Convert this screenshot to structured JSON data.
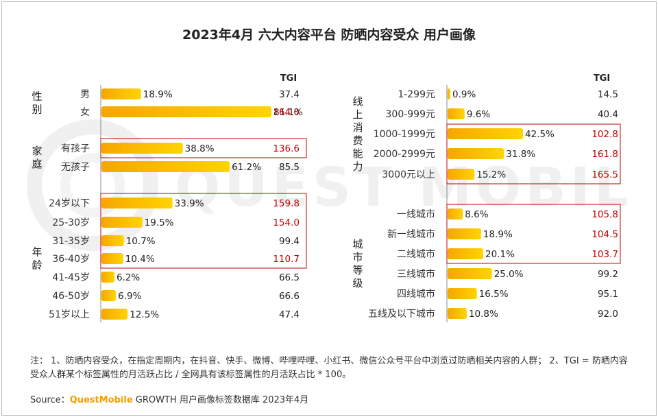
{
  "title": "2023年4月 六大内容平台 防晒内容受众 用户画像",
  "watermark_text": "QUEST MOBILE",
  "tgi_header": "TGI",
  "colors": {
    "bar_start": "#f7a600",
    "bar_end": "#ffd400",
    "highlight_text": "#c00000",
    "box": "#c00000",
    "axis": "#888888"
  },
  "chart_data": [
    {
      "type": "bar",
      "orientation": "horizontal",
      "panel": "left",
      "value_unit": "%",
      "groups": [
        {
          "label": "性别",
          "categories": [
            "男",
            "女"
          ],
          "values": [
            18.9,
            81.1
          ],
          "tgi": [
            37.4,
            164.0
          ],
          "tgi_highlight": [
            false,
            true
          ],
          "boxed": [
            false,
            false
          ]
        },
        {
          "label": "家庭",
          "categories": [
            "有孩子",
            "无孩子"
          ],
          "values": [
            38.8,
            61.2
          ],
          "tgi": [
            136.6,
            85.5
          ],
          "tgi_highlight": [
            true,
            false
          ],
          "boxed": [
            true,
            false
          ]
        },
        {
          "label": "年龄",
          "categories": [
            "24岁以下",
            "25-30岁",
            "31-35岁",
            "36-40岁",
            "41-45岁",
            "46-50岁",
            "51岁以上"
          ],
          "values": [
            33.9,
            19.5,
            10.7,
            10.4,
            6.2,
            6.9,
            12.5
          ],
          "tgi": [
            159.8,
            154.0,
            99.4,
            110.7,
            66.5,
            66.6,
            47.4
          ],
          "tgi_highlight": [
            true,
            true,
            false,
            true,
            false,
            false,
            false
          ],
          "boxed": [
            true,
            true,
            true,
            true,
            false,
            false,
            false
          ]
        }
      ]
    },
    {
      "type": "bar",
      "orientation": "horizontal",
      "panel": "right",
      "value_unit": "%",
      "groups": [
        {
          "label": "线上消费能力",
          "categories": [
            "1-299元",
            "300-999元",
            "1000-1999元",
            "2000-2999元",
            "3000元以上"
          ],
          "values": [
            0.9,
            9.6,
            42.5,
            31.8,
            15.2
          ],
          "tgi": [
            14.5,
            40.4,
            102.8,
            161.8,
            165.5
          ],
          "tgi_highlight": [
            false,
            false,
            true,
            true,
            true
          ],
          "boxed": [
            false,
            false,
            true,
            true,
            true
          ]
        },
        {
          "label": "城市等级",
          "categories": [
            "一线城市",
            "新一线城市",
            "二线城市",
            "三线城市",
            "四线城市",
            "五线及以下城市"
          ],
          "values": [
            8.6,
            18.9,
            20.1,
            25.0,
            16.5,
            10.8
          ],
          "tgi": [
            105.8,
            104.5,
            103.7,
            99.2,
            95.1,
            92.0
          ],
          "tgi_highlight": [
            true,
            true,
            true,
            false,
            false,
            false
          ],
          "boxed": [
            true,
            true,
            true,
            false,
            false,
            false
          ]
        }
      ]
    }
  ],
  "note": "注： 1、防晒内容受众，在指定周期内，在抖音、快手、微博、哔哩哔哩、小红书、微信公众号平台中浏览过防晒相关内容的人群； 2、TGI = 防晒内容受众人群某个标签属性的月活跃占比 / 全网具有该标签属性的月活跃占比 * 100。",
  "source_label": "Source：",
  "source_brand": "QuestMobile",
  "source_text": " GROWTH 用户画像标签数据库 2023年4月"
}
